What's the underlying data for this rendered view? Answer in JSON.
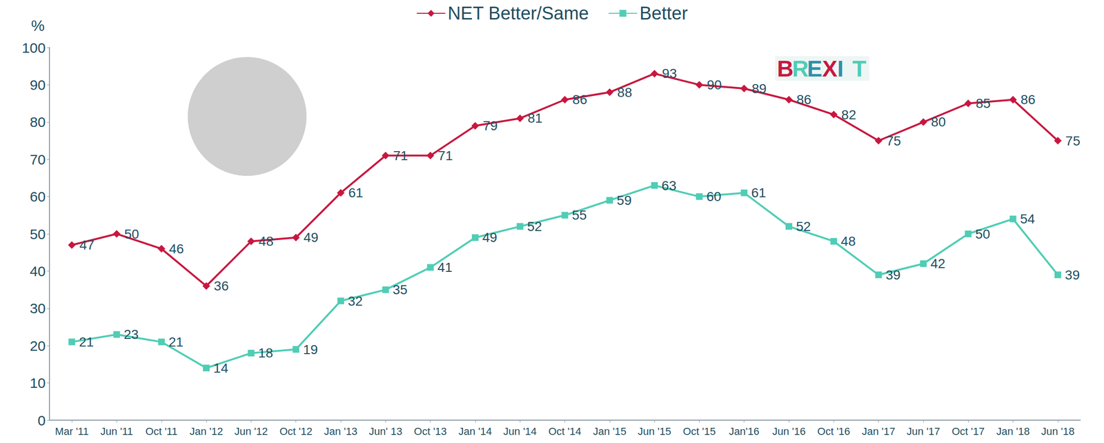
{
  "chart_data": {
    "type": "line",
    "y_label": "%",
    "annotations": [
      "BREXIT"
    ],
    "categories": [
      "Mar '11",
      "Jun '11",
      "Oct '11",
      "Jan '12",
      "Jun '12",
      "Oct '12",
      "Jan '13",
      "Jun' 13",
      "Oct '13",
      "Jan '14",
      "Jun '14",
      "Oct '14",
      "Jan '15",
      "Jun '15",
      "Oct '15",
      "Jan'16",
      "Jun '16",
      "Oct '16",
      "Jan '17",
      "Jun '17",
      "Oct '17",
      "Jan '18",
      "Jun '18"
    ],
    "series": [
      {
        "name": "NET Better/Same",
        "color": "#c8173f",
        "marker": "diamond",
        "values": [
          47,
          50,
          46,
          36,
          48,
          49,
          61,
          71,
          71,
          79,
          81,
          86,
          88,
          93,
          90,
          89,
          86,
          82,
          75,
          80,
          85,
          86,
          75
        ]
      },
      {
        "name": "Better",
        "color": "#4fcdb5",
        "marker": "square",
        "values": [
          21,
          23,
          21,
          14,
          18,
          19,
          32,
          35,
          41,
          49,
          52,
          55,
          59,
          63,
          60,
          61,
          52,
          48,
          39,
          42,
          50,
          54,
          39
        ]
      }
    ],
    "ylim": [
      0,
      100
    ],
    "yticks": [
      0,
      10,
      20,
      30,
      40,
      50,
      60,
      70,
      80,
      90,
      100
    ],
    "grid": false,
    "legend": "top",
    "data_labels": true
  }
}
